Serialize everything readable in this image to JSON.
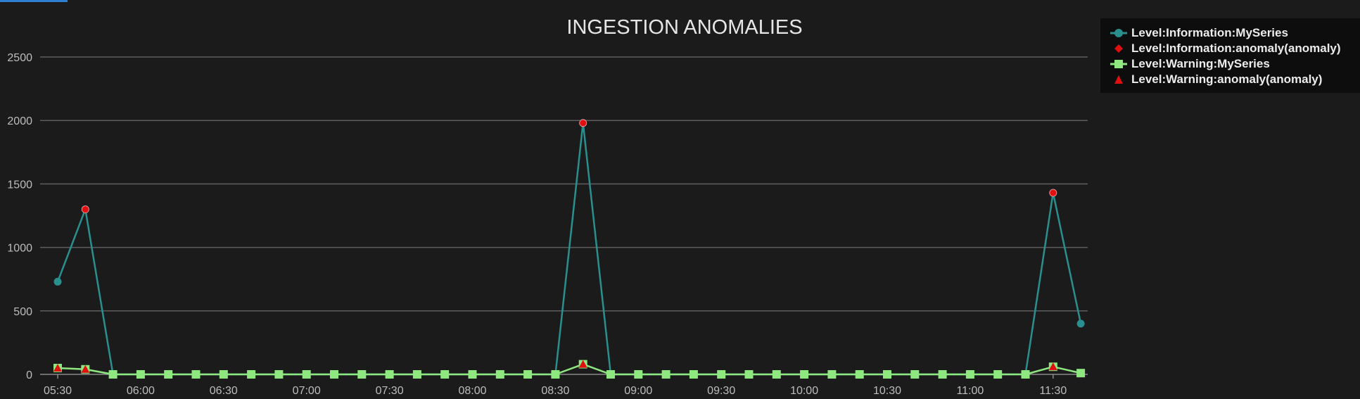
{
  "chart_data": {
    "type": "line",
    "title": "INGESTION ANOMALIES",
    "xlabel": "",
    "ylabel": "",
    "ylim": [
      0,
      2500
    ],
    "y_ticks": [
      "0",
      "500",
      "1000",
      "1500",
      "2000",
      "2500"
    ],
    "x_ticks": [
      "05:30",
      "06:00",
      "06:30",
      "07:00",
      "07:30",
      "08:00",
      "08:30",
      "09:00",
      "09:30",
      "10:00",
      "10:30",
      "11:00",
      "11:30"
    ],
    "x": [
      "05:30",
      "05:40",
      "05:50",
      "06:00",
      "06:10",
      "06:20",
      "06:30",
      "06:40",
      "06:50",
      "07:00",
      "07:10",
      "07:20",
      "07:30",
      "07:40",
      "07:50",
      "08:00",
      "08:10",
      "08:20",
      "08:30",
      "08:40",
      "08:50",
      "09:00",
      "09:10",
      "09:20",
      "09:30",
      "09:40",
      "09:50",
      "10:00",
      "10:10",
      "10:20",
      "10:30",
      "10:40",
      "10:50",
      "11:00",
      "11:10",
      "11:20",
      "11:30",
      "11:40"
    ],
    "grid": true,
    "legend_position": "top-right",
    "series": [
      {
        "name": "Level:Information:MySeries",
        "color": "#2a8f8f",
        "marker": "circle",
        "values": [
          730,
          1300,
          0,
          0,
          0,
          0,
          0,
          0,
          0,
          0,
          0,
          0,
          0,
          0,
          0,
          0,
          0,
          0,
          0,
          1980,
          0,
          0,
          0,
          0,
          0,
          0,
          0,
          0,
          0,
          0,
          0,
          0,
          0,
          0,
          0,
          0,
          1430,
          400
        ]
      },
      {
        "name": "Level:Information:anomaly(anomaly)",
        "color": "#e01010",
        "marker": "diamond",
        "points": [
          {
            "x": "05:40",
            "y": 1300
          },
          {
            "x": "08:40",
            "y": 1980
          },
          {
            "x": "11:30",
            "y": 1430
          }
        ]
      },
      {
        "name": "Level:Warning:MySeries",
        "color": "#8ee87f",
        "marker": "square",
        "values": [
          50,
          40,
          0,
          0,
          0,
          0,
          0,
          0,
          0,
          0,
          0,
          0,
          0,
          0,
          0,
          0,
          0,
          0,
          0,
          80,
          0,
          0,
          0,
          0,
          0,
          0,
          0,
          0,
          0,
          0,
          0,
          0,
          0,
          0,
          0,
          0,
          60,
          10
        ]
      },
      {
        "name": "Level:Warning:anomaly(anomaly)",
        "color": "#e01010",
        "marker": "triangle",
        "points": [
          {
            "x": "05:30",
            "y": 50
          },
          {
            "x": "05:40",
            "y": 40
          },
          {
            "x": "08:40",
            "y": 80
          },
          {
            "x": "11:30",
            "y": 60
          }
        ]
      }
    ]
  }
}
